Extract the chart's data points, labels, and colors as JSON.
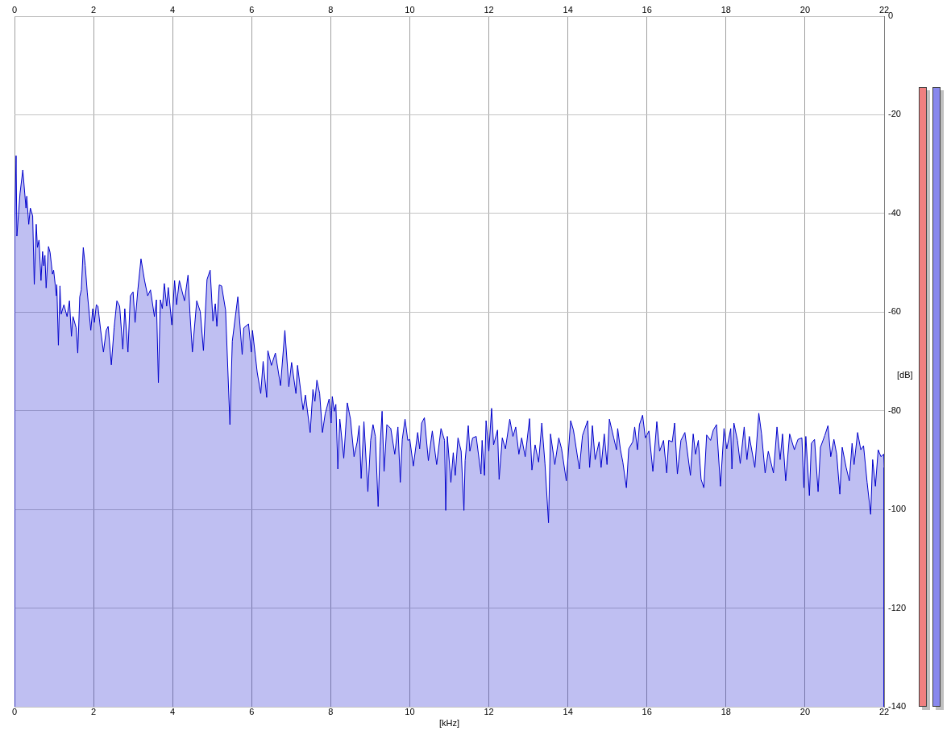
{
  "chart_data": {
    "type": "area",
    "xlabel": "[kHz]",
    "ylabel": "[dB]",
    "x": [
      0.0,
      0.0,
      0.04,
      0.06,
      0.14,
      0.21,
      0.29,
      0.31,
      0.36,
      0.4,
      0.46,
      0.5,
      0.55,
      0.58,
      0.62,
      0.67,
      0.71,
      0.74,
      0.77,
      0.8,
      0.86,
      0.9,
      0.96,
      0.99,
      1.06,
      1.07,
      1.11,
      1.15,
      1.18,
      1.25,
      1.33,
      1.39,
      1.44,
      1.48,
      1.56,
      1.6,
      1.65,
      1.69,
      1.74,
      1.79,
      1.84,
      1.93,
      1.98,
      2.02,
      2.07,
      2.11,
      2.18,
      2.25,
      2.32,
      2.37,
      2.45,
      2.52,
      2.59,
      2.66,
      2.74,
      2.79,
      2.87,
      2.93,
      3.0,
      3.05,
      3.12,
      3.2,
      3.29,
      3.37,
      3.44,
      3.54,
      3.59,
      3.64,
      3.69,
      3.74,
      3.79,
      3.85,
      3.89,
      3.98,
      4.05,
      4.1,
      4.17,
      4.3,
      4.39,
      4.44,
      4.5,
      4.61,
      4.7,
      4.78,
      4.87,
      4.95,
      5.02,
      5.08,
      5.12,
      5.18,
      5.24,
      5.34,
      5.45,
      5.51,
      5.65,
      5.76,
      5.8,
      5.92,
      5.99,
      6.02,
      6.09,
      6.14,
      6.23,
      6.29,
      6.38,
      6.41,
      6.5,
      6.6,
      6.73,
      6.84,
      6.94,
      7.01,
      7.12,
      7.16,
      7.3,
      7.36,
      7.48,
      7.55,
      7.6,
      7.65,
      7.72,
      7.79,
      7.86,
      7.96,
      8.01,
      8.04,
      8.09,
      8.13,
      8.18,
      8.23,
      8.33,
      8.42,
      8.5,
      8.59,
      8.67,
      8.72,
      8.77,
      8.84,
      8.94,
      9.01,
      9.07,
      9.13,
      9.2,
      9.25,
      9.3,
      9.35,
      9.42,
      9.52,
      9.62,
      9.7,
      9.76,
      9.81,
      9.88,
      9.95,
      10.0,
      10.09,
      10.2,
      10.25,
      10.3,
      10.37,
      10.47,
      10.57,
      10.68,
      10.79,
      10.88,
      10.91,
      10.95,
      11.04,
      11.1,
      11.15,
      11.22,
      11.3,
      11.37,
      11.4,
      11.48,
      11.52,
      11.59,
      11.68,
      11.8,
      11.83,
      11.89,
      11.93,
      12.0,
      12.07,
      12.12,
      12.22,
      12.26,
      12.34,
      12.42,
      12.53,
      12.61,
      12.68,
      12.76,
      12.83,
      12.92,
      13.03,
      13.09,
      13.17,
      13.26,
      13.34,
      13.42,
      13.51,
      13.56,
      13.67,
      13.77,
      13.84,
      13.96,
      14.07,
      14.14,
      14.29,
      14.37,
      14.5,
      14.55,
      14.62,
      14.69,
      14.79,
      14.84,
      14.92,
      14.99,
      15.05,
      15.16,
      15.23,
      15.26,
      15.33,
      15.39,
      15.48,
      15.54,
      15.64,
      15.69,
      15.76,
      15.81,
      15.89,
      15.96,
      16.05,
      16.15,
      16.25,
      16.32,
      16.42,
      16.5,
      16.55,
      16.64,
      16.7,
      16.77,
      16.86,
      16.96,
      17.1,
      17.17,
      17.23,
      17.3,
      17.37,
      17.44,
      17.51,
      17.61,
      17.68,
      17.76,
      17.86,
      17.95,
      18.02,
      18.12,
      18.15,
      18.2,
      18.29,
      18.36,
      18.46,
      18.53,
      18.59,
      18.73,
      18.83,
      18.9,
      18.99,
      19.07,
      19.2,
      19.29,
      19.37,
      19.43,
      19.51,
      19.61,
      19.73,
      19.82,
      19.92,
      19.97,
      20.02,
      20.11,
      20.16,
      20.24,
      20.33,
      20.39,
      20.5,
      20.58,
      20.65,
      20.73,
      20.8,
      20.88,
      20.94,
      21.04,
      21.12,
      21.19,
      21.24,
      21.33,
      21.41,
      21.48,
      21.57,
      21.66,
      21.71,
      21.78,
      21.85,
      21.92,
      21.99,
      22.0,
      22.0
    ],
    "series": [
      {
        "color": "#0000cc",
        "values": [
          -140,
          -44.0,
          -28.3,
          -44.6,
          -35.9,
          -31.2,
          -38.9,
          -36.5,
          -42.2,
          -38.9,
          -40.5,
          -54.4,
          -42.2,
          -46.9,
          -45.4,
          -53.6,
          -47.7,
          -50.6,
          -48.5,
          -55.1,
          -46.7,
          -47.9,
          -52.3,
          -51.5,
          -56.7,
          -54.4,
          -66.7,
          -54.7,
          -60.4,
          -58.5,
          -60.9,
          -57.7,
          -64.9,
          -60.9,
          -63.2,
          -68.3,
          -56.9,
          -55.5,
          -46.9,
          -50.6,
          -55.9,
          -63.7,
          -59.3,
          -62.1,
          -58.5,
          -58.8,
          -63.7,
          -68.1,
          -63.7,
          -62.9,
          -70.7,
          -63.2,
          -57.7,
          -58.8,
          -67.5,
          -59.3,
          -68.1,
          -56.7,
          -55.9,
          -62.1,
          -55.5,
          -49.2,
          -53.6,
          -56.7,
          -55.5,
          -60.9,
          -57.5,
          -74.3,
          -57.5,
          -59.3,
          -54.2,
          -58.8,
          -55.0,
          -62.6,
          -53.6,
          -58.5,
          -53.6,
          -57.7,
          -52.5,
          -60.4,
          -68.1,
          -57.7,
          -59.9,
          -67.8,
          -53.4,
          -51.5,
          -61.8,
          -58.3,
          -62.9,
          -54.5,
          -54.7,
          -59.6,
          -82.8,
          -65.9,
          -56.9,
          -68.6,
          -63.2,
          -62.4,
          -68.1,
          -63.7,
          -68.6,
          -72.2,
          -76.5,
          -70.0,
          -77.3,
          -67.8,
          -70.8,
          -68.3,
          -74.9,
          -63.7,
          -75.1,
          -70.2,
          -76.5,
          -70.8,
          -79.8,
          -76.8,
          -84.4,
          -75.7,
          -78.1,
          -73.8,
          -76.5,
          -84.4,
          -80.6,
          -77.6,
          -82.5,
          -77.1,
          -80.1,
          -78.7,
          -91.8,
          -81.7,
          -89.6,
          -78.4,
          -81.7,
          -89.3,
          -86.3,
          -83.0,
          -93.7,
          -82.2,
          -96.4,
          -86.0,
          -82.8,
          -85.2,
          -99.4,
          -87.1,
          -80.1,
          -92.3,
          -82.8,
          -83.6,
          -88.8,
          -83.3,
          -94.5,
          -85.8,
          -81.7,
          -86.0,
          -85.8,
          -91.2,
          -84.4,
          -87.7,
          -82.5,
          -81.4,
          -90.1,
          -84.1,
          -90.9,
          -83.6,
          -86.0,
          -100.2,
          -85.2,
          -94.5,
          -88.5,
          -93.1,
          -85.5,
          -88.2,
          -100.2,
          -90.1,
          -83.0,
          -88.2,
          -85.5,
          -85.2,
          -92.8,
          -86.0,
          -93.1,
          -82.0,
          -88.2,
          -79.5,
          -86.9,
          -83.9,
          -93.9,
          -85.5,
          -87.7,
          -81.7,
          -85.2,
          -83.3,
          -88.8,
          -85.5,
          -89.3,
          -81.6,
          -92.0,
          -86.9,
          -90.4,
          -82.5,
          -90.7,
          -102.7,
          -84.7,
          -90.9,
          -85.5,
          -87.7,
          -94.2,
          -82.0,
          -83.9,
          -91.8,
          -85.0,
          -82.0,
          -91.5,
          -83.0,
          -89.9,
          -86.3,
          -91.5,
          -84.7,
          -90.9,
          -81.7,
          -85.5,
          -87.9,
          -83.6,
          -87.9,
          -90.4,
          -95.6,
          -87.7,
          -86.3,
          -83.3,
          -87.9,
          -82.8,
          -80.9,
          -85.5,
          -84.1,
          -92.3,
          -82.2,
          -88.2,
          -86.0,
          -92.6,
          -86.0,
          -86.3,
          -82.5,
          -92.8,
          -86.0,
          -84.4,
          -93.1,
          -84.7,
          -88.8,
          -86.0,
          -93.9,
          -95.6,
          -84.9,
          -86.0,
          -83.9,
          -82.8,
          -95.3,
          -83.6,
          -87.7,
          -83.6,
          -91.8,
          -82.5,
          -86.0,
          -90.7,
          -83.3,
          -89.9,
          -85.2,
          -91.5,
          -80.5,
          -84.7,
          -92.6,
          -88.2,
          -92.6,
          -83.3,
          -89.9,
          -84.7,
          -94.2,
          -84.7,
          -87.9,
          -85.8,
          -85.5,
          -95.6,
          -85.2,
          -97.2,
          -86.6,
          -85.8,
          -96.4,
          -87.4,
          -85.0,
          -83.0,
          -89.3,
          -85.8,
          -88.8,
          -96.9,
          -87.4,
          -91.5,
          -94.2,
          -86.6,
          -90.9,
          -84.4,
          -87.9,
          -87.1,
          -94.5,
          -101.0,
          -89.9,
          -95.3,
          -87.9,
          -89.3,
          -88.8,
          -91.5,
          -140
        ]
      }
    ],
    "xlim": [
      0,
      22
    ],
    "xticks": [
      0,
      2,
      4,
      6,
      8,
      10,
      12,
      14,
      16,
      18,
      20,
      22
    ],
    "x2lim": [
      0,
      22
    ],
    "x2ticks": [
      0,
      2,
      4,
      6,
      8,
      10,
      12,
      14,
      16,
      18,
      20,
      22
    ],
    "ylim": [
      -140,
      0
    ],
    "yticks": [
      0,
      -20,
      -40,
      -60,
      -80,
      -100,
      -120,
      -140
    ],
    "grid": true
  }
}
